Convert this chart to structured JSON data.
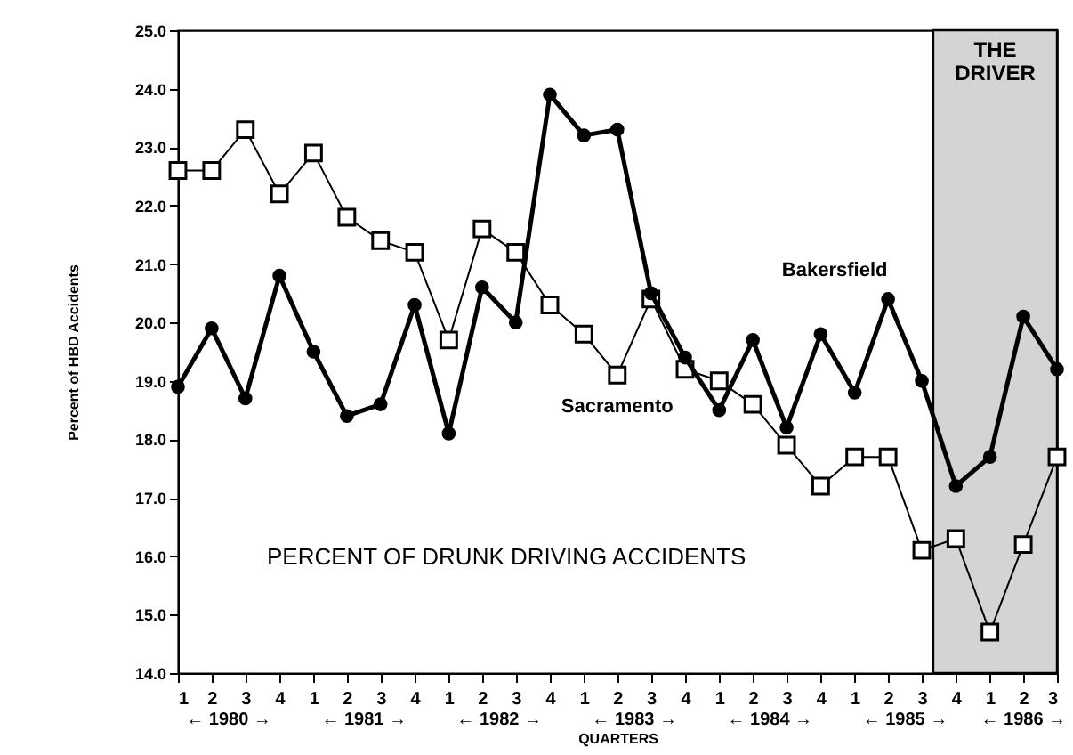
{
  "chart_data": {
    "type": "line",
    "xlabel": "QUARTERS",
    "ylabel": "Percent of HBD Accidents",
    "x": [
      "1980-01",
      "1980-04",
      "1980-07",
      "1980-10",
      "1981-01",
      "1981-04",
      "1981-07",
      "1981-10",
      "1982-01",
      "1982-04",
      "1982-07",
      "1982-10",
      "1983-01",
      "1983-04",
      "1983-07",
      "1983-10",
      "1984-01",
      "1984-04",
      "1984-07",
      "1984-10",
      "1985-01",
      "1985-04",
      "1985-07",
      "1985-10",
      "1986-01",
      "1986-04",
      "1986-07"
    ],
    "series": [
      {
        "name": "Sacramento",
        "color": "#000000",
        "marker": "square",
        "values": [
          22.6,
          22.6,
          23.3,
          22.2,
          22.9,
          21.8,
          21.4,
          21.2,
          19.7,
          21.6,
          21.2,
          20.3,
          19.8,
          19.1,
          20.4,
          19.2,
          19.0,
          18.6,
          17.9,
          17.2,
          17.7,
          17.7,
          16.1,
          16.3,
          14.7,
          16.2,
          17.7
        ]
      },
      {
        "name": "Bakersfield",
        "color": "#000000",
        "marker": "circle",
        "values": [
          18.9,
          19.9,
          18.7,
          20.8,
          19.5,
          18.4,
          18.6,
          20.3,
          18.1,
          20.6,
          20.0,
          23.9,
          23.2,
          23.3,
          20.5,
          19.4,
          18.5,
          19.7,
          18.2,
          19.8,
          18.8,
          20.4,
          19.0,
          17.2,
          17.7,
          20.1,
          19.2
        ]
      }
    ],
    "xlim": [
      "1980-01",
      "1986-07"
    ],
    "xticks": [
      {
        "value": "1980-01",
        "label": "1"
      },
      {
        "value": "1980-04",
        "label": "2"
      },
      {
        "value": "1980-07",
        "label": "3"
      },
      {
        "value": "1980-10",
        "label": "4"
      },
      {
        "value": "1981-01",
        "label": "1"
      },
      {
        "value": "1981-04",
        "label": "2"
      },
      {
        "value": "1981-07",
        "label": "3"
      },
      {
        "value": "1981-10",
        "label": "4"
      },
      {
        "value": "1982-01",
        "label": "1"
      },
      {
        "value": "1982-04",
        "label": "2"
      },
      {
        "value": "1982-07",
        "label": "3"
      },
      {
        "value": "1982-10",
        "label": "4"
      },
      {
        "value": "1983-01",
        "label": "1"
      },
      {
        "value": "1983-04",
        "label": "2"
      },
      {
        "value": "1983-07",
        "label": "3"
      },
      {
        "value": "1983-10",
        "label": "4"
      },
      {
        "value": "1984-01",
        "label": "1"
      },
      {
        "value": "1984-04",
        "label": "2"
      },
      {
        "value": "1984-07",
        "label": "3"
      },
      {
        "value": "1984-10",
        "label": "4"
      },
      {
        "value": "1985-01",
        "label": "1"
      },
      {
        "value": "1985-04",
        "label": "2"
      },
      {
        "value": "1985-07",
        "label": "3"
      },
      {
        "value": "1985-10",
        "label": "4"
      },
      {
        "value": "1986-01",
        "label": "1"
      },
      {
        "value": "1986-04",
        "label": "2"
      },
      {
        "value": "1986-07",
        "label": "3"
      }
    ],
    "ylim": [
      14,
      25
    ],
    "yticks": [
      {
        "value": 14,
        "label": "14.0"
      },
      {
        "value": 15,
        "label": "15.0"
      },
      {
        "value": 16,
        "label": "16.0"
      },
      {
        "value": 17,
        "label": "17.0"
      },
      {
        "value": 18,
        "label": "18.0"
      },
      {
        "value": 19,
        "label": "19.0"
      },
      {
        "value": 20,
        "label": "20.0"
      },
      {
        "value": 21,
        "label": "21.0"
      },
      {
        "value": 22,
        "label": "22.0"
      },
      {
        "value": 23,
        "label": "23.0"
      },
      {
        "value": 24,
        "label": "24.0"
      },
      {
        "value": 25,
        "label": "25.0"
      }
    ],
    "bands": [
      {
        "axis": "x",
        "from": "1985-08",
        "to": "1986-07",
        "label": "THE DRIVER",
        "color": "#d4d4d4"
      }
    ],
    "annotations": [
      "PERCENT OF DRUNK DRIVING ACCIDENTS",
      "← 1980 →",
      "← 1981 →",
      "← 1982 →",
      "← 1983 →",
      "← 1984 →",
      "← 1985 →",
      "← 1986 →"
    ],
    "grid": false,
    "legend": false,
    "line_style": "solid"
  }
}
